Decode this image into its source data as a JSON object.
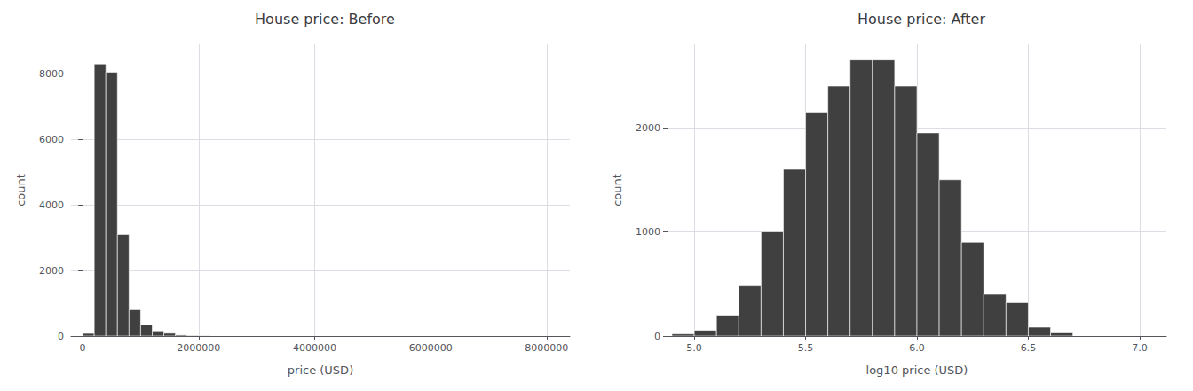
{
  "chart_data": [
    {
      "type": "histogram",
      "title": "House price: Before",
      "x_label": "price (USD)",
      "y_label": "count",
      "bins": [
        0,
        200000,
        400000,
        600000,
        800000,
        1000000,
        1200000,
        1400000,
        1600000,
        1800000,
        2000000,
        2200000
      ],
      "values": [
        80,
        8300,
        8050,
        3100,
        800,
        340,
        155,
        85,
        30,
        12,
        5
      ],
      "color": "#404040",
      "xlim": [
        -200000,
        8400000
      ],
      "xticks": [
        0,
        2000000,
        4000000,
        6000000,
        8000000
      ],
      "ylim": [
        0,
        8900
      ],
      "yticks": [
        0,
        2000,
        4000,
        6000,
        8000
      ],
      "grid": true
    },
    {
      "type": "histogram",
      "title": "House price: After",
      "x_label": "log10 price (USD)",
      "y_label": "count",
      "bins": [
        4.9,
        5.0,
        5.1,
        5.2,
        5.3,
        5.4,
        5.5,
        5.6,
        5.7,
        5.8,
        5.9,
        6.0,
        6.1,
        6.2,
        6.3,
        6.4,
        6.5,
        6.6,
        6.7
      ],
      "values": [
        20,
        55,
        200,
        480,
        1000,
        1600,
        2150,
        2400,
        2650,
        2650,
        2400,
        1950,
        1500,
        900,
        400,
        320,
        85,
        30
      ],
      "color": "#404040",
      "xlim": [
        4.88,
        7.12
      ],
      "xticks": [
        {
          "value": 5,
          "label": "5.0"
        },
        5.5,
        {
          "value": 6,
          "label": "6.0"
        },
        6.5,
        {
          "value": 7,
          "label": "7.0"
        }
      ],
      "ylim": [
        0,
        2800
      ],
      "yticks": [
        0,
        1000,
        2000
      ],
      "grid": true
    }
  ]
}
